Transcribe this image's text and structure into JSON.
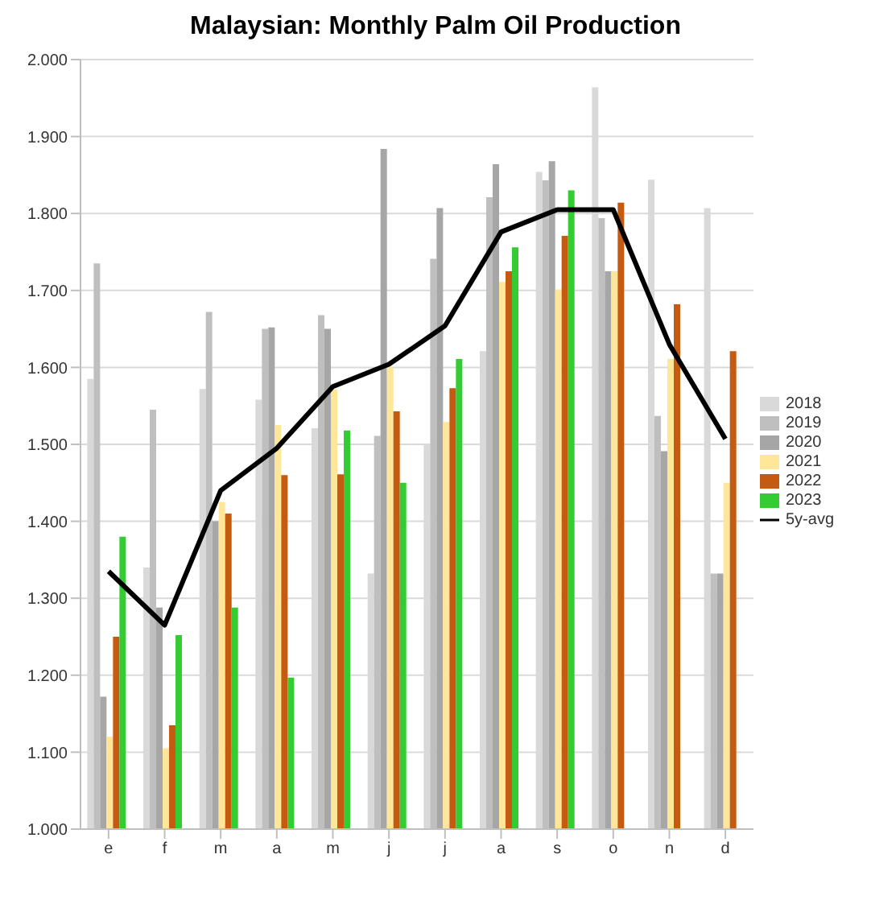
{
  "chart_data": {
    "type": "bar",
    "title": "Malaysian:  Monthly Palm Oil Production",
    "categories": [
      "e",
      "f",
      "m",
      "a",
      "m",
      "j",
      "j",
      "a",
      "s",
      "o",
      "n",
      "d"
    ],
    "series": [
      {
        "name": "2018",
        "color": "#d9d9d9",
        "values": [
          1585,
          1340,
          1572,
          1558,
          1521,
          1332,
          1500,
          1621,
          1854,
          1964,
          1844,
          1807
        ]
      },
      {
        "name": "2019",
        "color": "#bfbfbf",
        "values": [
          1735,
          1545,
          1672,
          1650,
          1668,
          1511,
          1741,
          1821,
          1843,
          1794,
          1537,
          1332
        ]
      },
      {
        "name": "2020",
        "color": "#a6a6a6",
        "values": [
          1172,
          1288,
          1400,
          1652,
          1650,
          1884,
          1807,
          1864,
          1868,
          1725,
          1491,
          1332
        ]
      },
      {
        "name": "2021",
        "color": "#ffe699",
        "values": [
          1120,
          1105,
          1425,
          1525,
          1571,
          1600,
          1529,
          1711,
          1701,
          1725,
          1611,
          1450
        ]
      },
      {
        "name": "2022",
        "color": "#c55a11",
        "values": [
          1250,
          1135,
          1410,
          1460,
          1461,
          1543,
          1573,
          1725,
          1771,
          1814,
          1682,
          1621
        ]
      },
      {
        "name": "2023",
        "color": "#33cc33",
        "values": [
          1380,
          1252,
          1288,
          1197,
          1518,
          1450,
          1611,
          1756,
          1830,
          null,
          null,
          null
        ]
      },
      {
        "name": "5y-avg",
        "type": "line",
        "color": "#000000",
        "values": [
          1335,
          1265,
          1440,
          1495,
          1575,
          1604,
          1654,
          1776,
          1805,
          1805,
          1630,
          1507
        ]
      }
    ],
    "ylim": [
      1000,
      2000
    ],
    "yticks": [
      {
        "value": 1000,
        "label": "1.000"
      },
      {
        "value": 1100,
        "label": "1.100"
      },
      {
        "value": 1200,
        "label": "1.200"
      },
      {
        "value": 1300,
        "label": "1.300"
      },
      {
        "value": 1400,
        "label": "1.400"
      },
      {
        "value": 1500,
        "label": "1.500"
      },
      {
        "value": 1600,
        "label": "1.600"
      },
      {
        "value": 1700,
        "label": "1.700"
      },
      {
        "value": 1800,
        "label": "1.800"
      },
      {
        "value": 1900,
        "label": "1.900"
      },
      {
        "value": 2000,
        "label": "2.000"
      }
    ],
    "grid": "y",
    "legend": "right",
    "marker": "none"
  }
}
